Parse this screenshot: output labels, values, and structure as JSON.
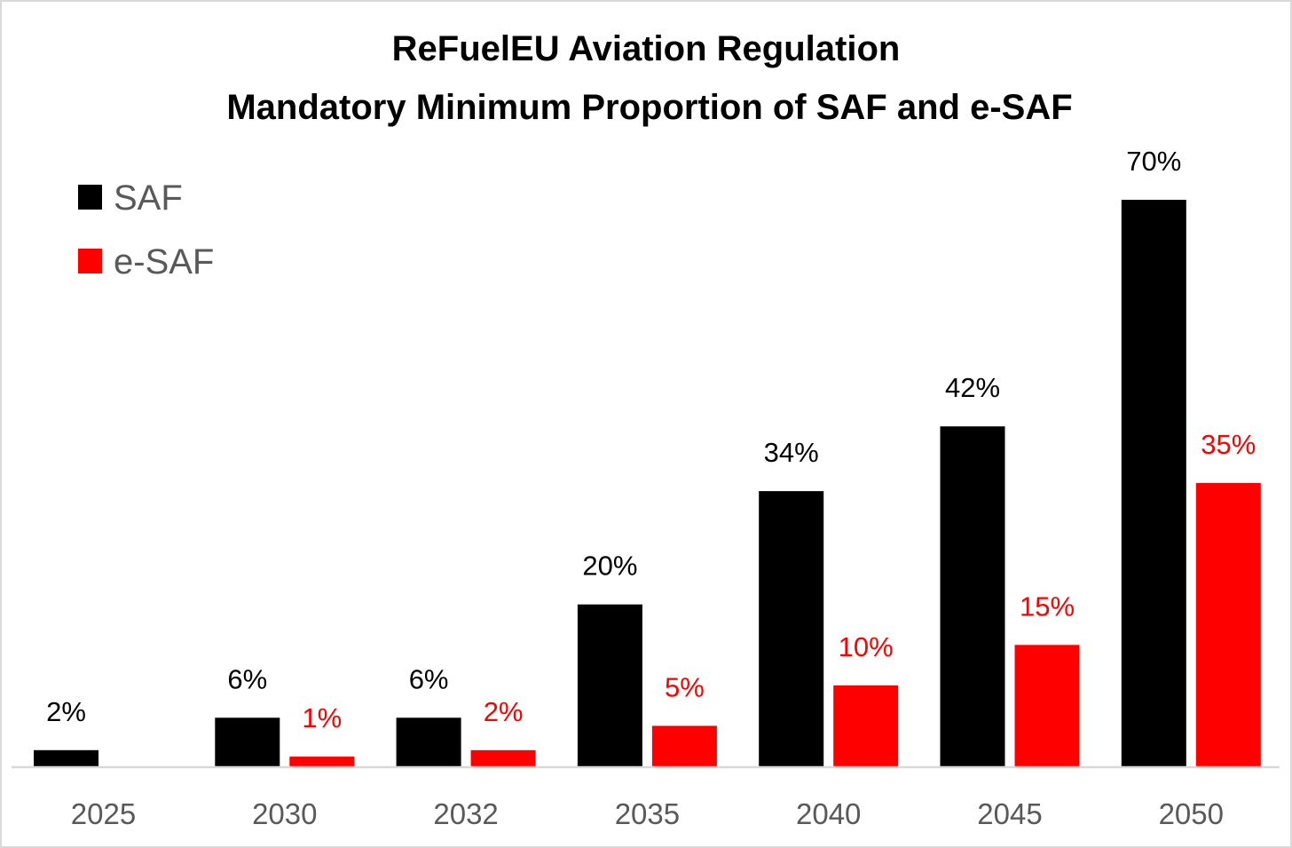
{
  "chart_data": {
    "type": "bar",
    "title": [
      "ReFuelEU Aviation Regulation",
      "Mandatory Minimum Proportion of SAF and e-SAF"
    ],
    "xlabel": "",
    "ylabel": "",
    "categories": [
      "2025",
      "2030",
      "2032",
      "2035",
      "2040",
      "2045",
      "2050"
    ],
    "series": [
      {
        "name": "SAF",
        "color": "#000000",
        "values": [
          2,
          6,
          6,
          20,
          34,
          42,
          70
        ],
        "labels": [
          "2%",
          "6%",
          "6%",
          "20%",
          "34%",
          "42%",
          "70%"
        ]
      },
      {
        "name": "e-SAF",
        "color": "#ff0000",
        "values": [
          null,
          1.2,
          2,
          5,
          10,
          15,
          35
        ],
        "labels": [
          "",
          "1%",
          "2%",
          "5%",
          "10%",
          "15%",
          "35%"
        ]
      }
    ],
    "ylim": [
      0,
      70
    ],
    "grid": false,
    "legend": "top-left",
    "axis_color": "#d9d9d9",
    "tick_label_color": "#595959"
  }
}
